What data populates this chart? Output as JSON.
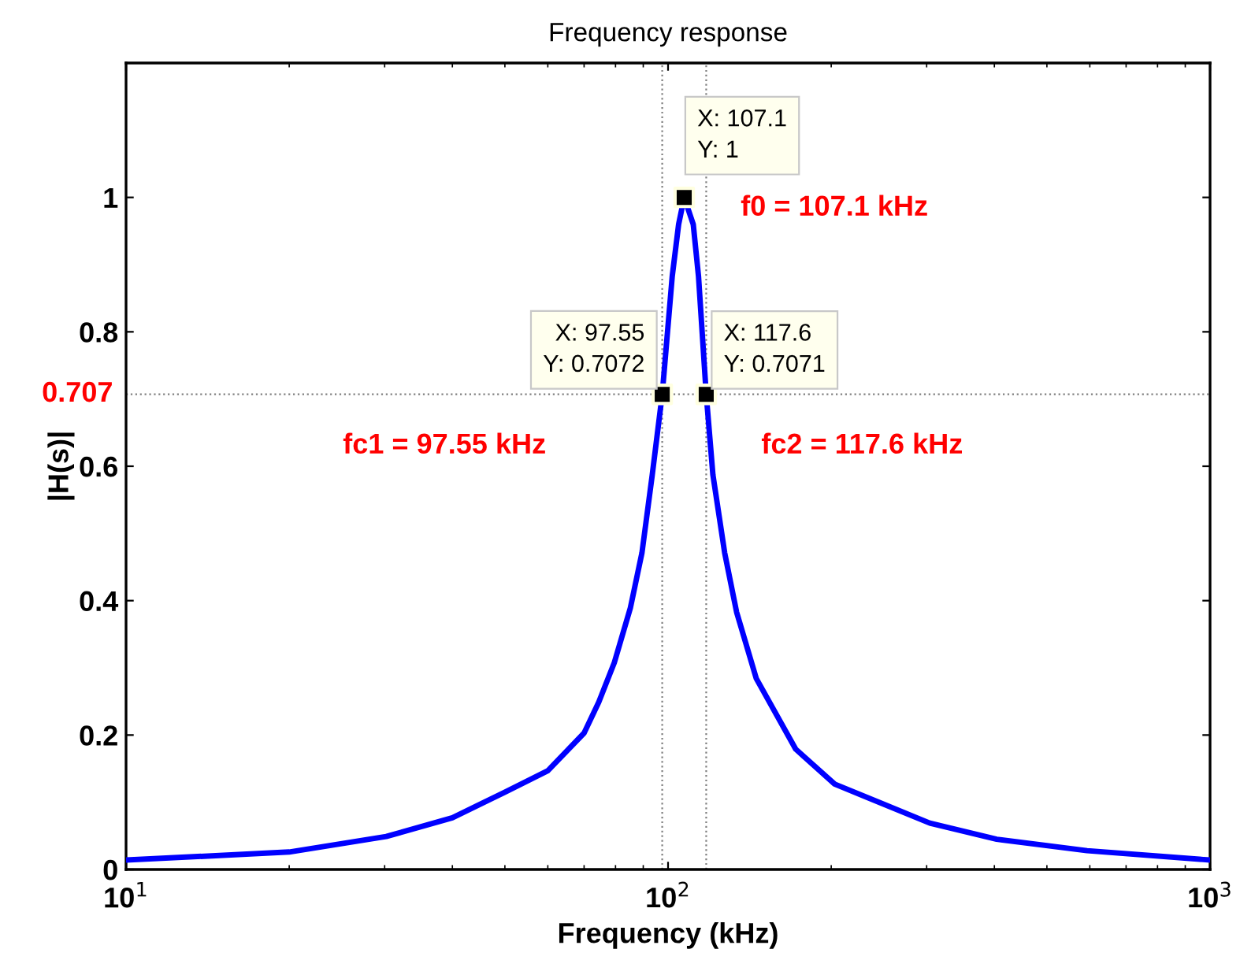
{
  "chart_data": {
    "type": "line",
    "title": "Frequency response",
    "xlabel": "Frequency (kHz)",
    "ylabel": "|H(s)|",
    "log": "x",
    "xlim": [
      10,
      1000
    ],
    "xticks": [
      {
        "value": 10,
        "label": "10$^{1}$"
      },
      {
        "value": 100,
        "label": "10$^{2}$"
      },
      {
        "value": 1000,
        "label": "10$^{3}$"
      }
    ],
    "ylim": [
      0,
      1.2
    ],
    "yticks": [
      0,
      0.2,
      0.4,
      0.6,
      0.8,
      1
    ],
    "grid": false,
    "marker": "none",
    "line_style": "solid",
    "series": [
      {
        "color": "#0000ff",
        "x": [
          10,
          20,
          30.2,
          40,
          50,
          60,
          70,
          74.5,
          79.6,
          85.2,
          89.5,
          93.5,
          97.55,
          101.8,
          104.6,
          107.1,
          111.3,
          113.8,
          117.6,
          121.0,
          127.2,
          133.8,
          145.5,
          172,
          203,
          304,
          404,
          593,
          1000
        ],
        "values": [
          0.014,
          0.026,
          0.049,
          0.077,
          0.115,
          0.147,
          0.203,
          0.249,
          0.308,
          0.389,
          0.471,
          0.587,
          0.707,
          0.883,
          0.96,
          1,
          0.96,
          0.883,
          0.707,
          0.587,
          0.471,
          0.383,
          0.284,
          0.179,
          0.127,
          0.069,
          0.045,
          0.028,
          0.014
        ]
      },
      {
        "type": "scatter",
        "color": "#000000",
        "marker": "square",
        "x": [
          97.55,
          107.1,
          117.6
        ],
        "values": [
          0.707,
          1,
          0.707
        ]
      }
    ],
    "ref_lines": [
      {
        "axis": "y",
        "value": 0.707,
        "label": "0.707",
        "line_style": "dotted"
      },
      {
        "axis": "x",
        "value": 97.55,
        "line_style": "dotted"
      },
      {
        "axis": "x",
        "value": 117.6,
        "line_style": "dotted"
      }
    ],
    "annotations": [
      {
        "text": "X: 97.55\nY: 0.7072",
        "x": 97.55,
        "y": 0.7072
      },
      {
        "text": "X: 107.1\nY: 1",
        "x": 107.1,
        "y": 1
      },
      {
        "text": "X: 117.6\nY: 0.7071",
        "x": 117.6,
        "y": 0.7071
      },
      "fc1 = 97.55 kHz",
      "f0 = 107.1 kHz",
      "fc2 = 117.6 kHz"
    ]
  }
}
